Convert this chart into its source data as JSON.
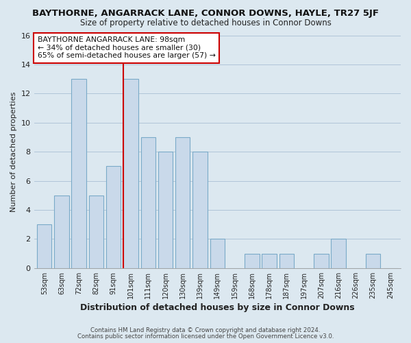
{
  "title": "BAYTHORNE, ANGARRACK LANE, CONNOR DOWNS, HAYLE, TR27 5JF",
  "subtitle": "Size of property relative to detached houses in Connor Downs",
  "xlabel": "Distribution of detached houses by size in Connor Downs",
  "ylabel": "Number of detached properties",
  "footer_line1": "Contains HM Land Registry data © Crown copyright and database right 2024.",
  "footer_line2": "Contains public sector information licensed under the Open Government Licence v3.0.",
  "annotation_line1": "BAYTHORNE ANGARRACK LANE: 98sqm",
  "annotation_line2": "← 34% of detached houses are smaller (30)",
  "annotation_line3": "65% of semi-detached houses are larger (57) →",
  "bar_labels": [
    "53sqm",
    "63sqm",
    "72sqm",
    "82sqm",
    "91sqm",
    "101sqm",
    "111sqm",
    "120sqm",
    "130sqm",
    "139sqm",
    "149sqm",
    "159sqm",
    "168sqm",
    "178sqm",
    "187sqm",
    "197sqm",
    "207sqm",
    "216sqm",
    "226sqm",
    "235sqm",
    "245sqm"
  ],
  "bar_values": [
    3,
    5,
    13,
    5,
    7,
    13,
    9,
    8,
    9,
    8,
    2,
    0,
    1,
    1,
    1,
    0,
    1,
    2,
    0,
    1,
    0
  ],
  "bar_color": "#c9d9ea",
  "bar_edge_color": "#7aaac8",
  "highlight_bar_index": 5,
  "highlight_line_color": "#cc0000",
  "ylim": [
    0,
    16
  ],
  "yticks": [
    0,
    2,
    4,
    6,
    8,
    10,
    12,
    14,
    16
  ],
  "bg_color": "#dce8f0",
  "plot_bg_color": "#dce8f0",
  "grid_color": "#b0c4d8",
  "annotation_box_edge_color": "#cc0000",
  "annotation_box_bg": "#ffffff"
}
